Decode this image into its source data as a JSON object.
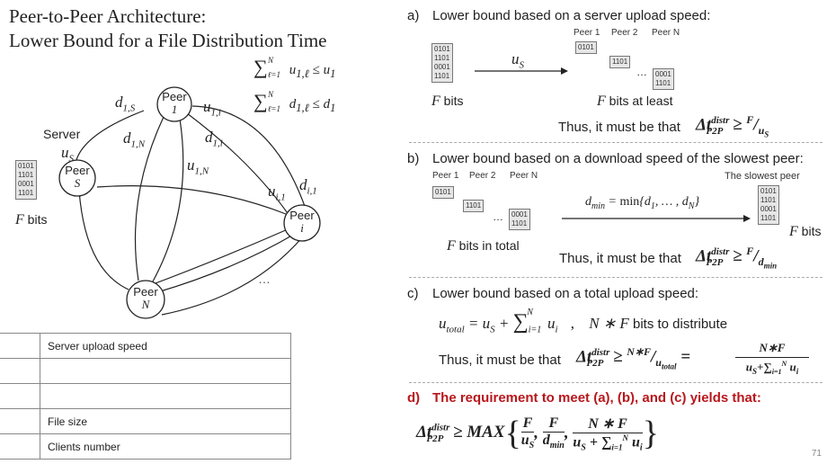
{
  "title": {
    "line1": "Peer-to-Peer Architecture:",
    "line2": "Lower Bound for a File Distribution Time"
  },
  "diagram": {
    "server_label": "Server",
    "f_bits": "F bits",
    "bits": [
      "0101",
      "1101",
      "0001",
      "1101"
    ],
    "peer_word": "Peer",
    "nodes": {
      "s": "S",
      "one": "1",
      "i": "i",
      "n": "N"
    },
    "ellipsis": "…",
    "edge_labels": {
      "us": "u_S",
      "d1s": "d_1,S",
      "u1i": "u_1,i",
      "d1n": "d_1,N",
      "d1i": "d_1,i",
      "u1n": "u_1,N",
      "ui1": "u_i,1",
      "di1": "d_i,1"
    },
    "constraints": [
      "∑_{ℓ=1}^N u_1,ℓ ≤ u_1",
      "∑_{ℓ=1}^N d_1,ℓ ≤ d_1"
    ]
  },
  "legend_table": {
    "rows": [
      {
        "symbol": "",
        "text": "Server upload speed"
      },
      {
        "symbol": "",
        "text": ""
      },
      {
        "symbol": "",
        "text": ""
      },
      {
        "symbol": "",
        "text": "File size"
      },
      {
        "symbol": "",
        "text": "Clients number"
      }
    ]
  },
  "section_a": {
    "marker": "a)",
    "heading": "Lower bound based on a server upload speed:",
    "peer_labels": [
      "Peer 1",
      "Peer 2",
      "Peer N"
    ],
    "arrow_label": "u_S",
    "f_bits": "F bits",
    "f_bits_at_least": "F bits at least",
    "thus": "Thus, it must be that",
    "formula": "Δt_P2P^distr ≥ F/u_S"
  },
  "section_b": {
    "marker": "b)",
    "heading": "Lower bound based on a download speed of the slowest peer:",
    "peer_labels": [
      "Peer 1",
      "Peer 2",
      "Peer N"
    ],
    "slowest_label": "The slowest peer",
    "arrow_label": "d_min = min{d_1, …, d_N}",
    "f_bits_in_total": "F bits in total",
    "f_bits": "F bits",
    "thus": "Thus, it must be that",
    "formula": "Δt_P2P^distr ≥ F/d_min"
  },
  "section_c": {
    "marker": "c)",
    "heading": "Lower bound based on a total upload speed:",
    "total_formula": "u_total = u_S + ∑_{i=1}^N u_i , N * F bits to distribute",
    "thus": "Thus, it must be that",
    "formula": "Δt_P2P^distr ≥ N*F/u_total = N*F / (u_S + ∑_{i=1}^N u_i)"
  },
  "section_d": {
    "marker": "d)",
    "heading": "The requirement to meet (a), (b), and (c) yields that:",
    "formula": "Δt_P2P^distr ≥ MAX{ F/u_S, F/d_min, N*F/(u_S + ∑_{i=1}^N u_i) }"
  },
  "page_number": "71"
}
